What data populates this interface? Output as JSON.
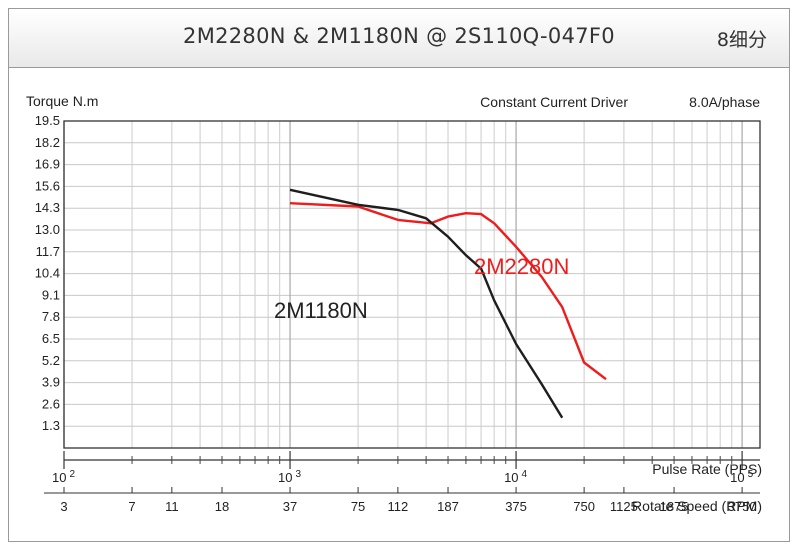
{
  "header": {
    "title": "2M2280N & 2M1180N @ 2S110Q-047F0",
    "subdivision": "8细分"
  },
  "chart_data": {
    "type": "line",
    "title": "2M2280N & 2M1180N @ 2S110Q-047F0",
    "ylabel": "Torque N.m",
    "xlabel": "Pulse Rate (PPS)",
    "xlabel2": "Rotate Speed (RPM)",
    "annotation_left": "Constant Current Driver",
    "annotation_right": "8.0A/phase",
    "x_scale": "log",
    "xlim": [
      100,
      120000
    ],
    "ylim": [
      0,
      19.5
    ],
    "yticks": [
      "19.5",
      "18.2",
      "16.9",
      "15.6",
      "14.3",
      "13.0",
      "11.7",
      "10.4",
      "9.1",
      "7.8",
      "6.5",
      "5.2",
      "3.9",
      "2.6",
      "1.3"
    ],
    "xticks_major": [
      {
        "base": "10",
        "exp": "2",
        "value": 100
      },
      {
        "base": "10",
        "exp": "3",
        "value": 1000
      },
      {
        "base": "10",
        "exp": "4",
        "value": 10000
      },
      {
        "base": "10",
        "exp": "5",
        "value": 100000
      }
    ],
    "xticks_minor": [
      2,
      3,
      4,
      5,
      6,
      7,
      8,
      9
    ],
    "rpm_ticks": [
      {
        "label": "3",
        "pps": 100
      },
      {
        "label": "7",
        "pps": 200
      },
      {
        "label": "11",
        "pps": 300
      },
      {
        "label": "18",
        "pps": 500
      },
      {
        "label": "37",
        "pps": 1000
      },
      {
        "label": "75",
        "pps": 2000
      },
      {
        "label": "112",
        "pps": 3000
      },
      {
        "label": "187",
        "pps": 5000
      },
      {
        "label": "375",
        "pps": 10000
      },
      {
        "label": "750",
        "pps": 20000
      },
      {
        "label": "1125",
        "pps": 30000
      },
      {
        "label": "1875",
        "pps": 50000
      },
      {
        "label": "3750",
        "pps": 100000
      }
    ],
    "grid": true,
    "series": [
      {
        "name": "2M2280N",
        "color": "#ee1c1c",
        "x": [
          1000,
          2000,
          3000,
          4200,
          5000,
          6000,
          7000,
          8000,
          10000,
          13000,
          16000,
          20000,
          25000
        ],
        "y": [
          14.6,
          14.4,
          13.6,
          13.4,
          13.8,
          14.0,
          13.95,
          13.4,
          12.0,
          10.2,
          8.4,
          5.1,
          4.1
        ]
      },
      {
        "name": "2M1180N",
        "color": "#1e1e1e",
        "x": [
          1000,
          2000,
          3000,
          4000,
          5000,
          6000,
          7000,
          8000,
          10000,
          13000,
          16000
        ],
        "y": [
          15.4,
          14.5,
          14.2,
          13.7,
          12.6,
          11.5,
          10.7,
          8.8,
          6.2,
          3.8,
          1.8
        ]
      }
    ]
  }
}
